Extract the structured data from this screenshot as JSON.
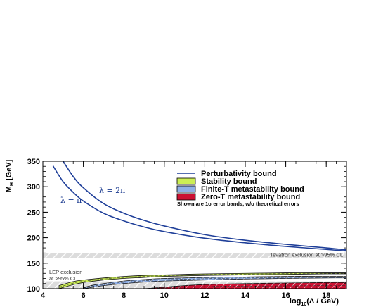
{
  "chart_data": {
    "type": "line",
    "title": "",
    "xlabel": "log10(Λ / GeV)",
    "ylabel": "MH [GeV]",
    "xlim": [
      4,
      19
    ],
    "ylim": [
      100,
      350
    ],
    "x_ticks": [
      4,
      6,
      8,
      10,
      12,
      14,
      16,
      18
    ],
    "y_ticks": [
      100,
      150,
      200,
      250,
      300,
      350
    ],
    "x_tick_labels": [
      "4",
      "6",
      "8",
      "10",
      "12",
      "14",
      "16",
      "18"
    ],
    "y_tick_labels": [
      "100",
      "150",
      "200",
      "250",
      "300",
      "350"
    ],
    "x_tick_minor": 0.5,
    "y_tick_minor": 10,
    "grid": false,
    "legend_position": "top-right",
    "legend": [
      {
        "key": "pert",
        "label": "Perturbativity bound",
        "color": "#1f3f99",
        "kind": "line"
      },
      {
        "key": "stab",
        "label": "Stability bound",
        "color": "#ccee55",
        "kind": "box"
      },
      {
        "key": "finite",
        "label": "Finite-T metastability bound",
        "color": "#8fb0e8",
        "kind": "box"
      },
      {
        "key": "zero",
        "label": "Zero-T metastability bound",
        "color": "#cc1133",
        "kind": "box"
      }
    ],
    "legend_note": "Shown are 1σ error bands, w/o theoretical errors",
    "series": [
      {
        "name": "Perturbativity bound",
        "curve_label": "λ = π",
        "color": "#1f3f99",
        "x": [
          4.5,
          5.0,
          5.5,
          6.0,
          7.0,
          8.0,
          9.0,
          10.0,
          12.0,
          14.0,
          16.0,
          18.0,
          19.0
        ],
        "y": [
          341,
          310,
          289,
          272,
          248,
          233,
          221,
          212,
          199,
          190,
          183,
          177,
          174
        ]
      },
      {
        "name": "Perturbativity bound",
        "curve_label": "λ = 2π",
        "color": "#1f3f99",
        "x": [
          5.0,
          5.5,
          6.0,
          7.0,
          8.0,
          9.0,
          10.0,
          12.0,
          14.0,
          16.0,
          18.0,
          19.0
        ],
        "y": [
          350,
          320,
          298,
          267,
          248,
          234,
          223,
          206,
          195,
          187,
          180,
          176
        ]
      },
      {
        "name": "Stability bound",
        "color": "#ccee55",
        "band": true,
        "x": [
          4.8,
          5.5,
          6.0,
          7.0,
          8.0,
          9.0,
          10.0,
          12.0,
          14.0,
          16.0,
          18.0,
          19.0
        ],
        "y_low": [
          100,
          108,
          112,
          117,
          120,
          122,
          124,
          126,
          127,
          128,
          129,
          129
        ],
        "y_high": [
          106,
          114,
          117,
          121,
          124,
          126,
          127,
          129,
          130,
          131,
          131,
          131
        ]
      },
      {
        "name": "Finite-T metastability bound",
        "color": "#8fb0e8",
        "band": true,
        "x": [
          6.0,
          6.5,
          7.0,
          8.0,
          9.0,
          10.0,
          12.0,
          14.0,
          16.0,
          18.0,
          19.0
        ],
        "y_low": [
          100,
          103,
          106,
          110,
          113,
          115,
          117,
          119,
          120,
          121,
          121
        ],
        "y_high": [
          102,
          107,
          110,
          115,
          118,
          120,
          122,
          123,
          124,
          124,
          124
        ]
      },
      {
        "name": "Zero-T metastability bound",
        "color": "#cc1133",
        "band": true,
        "x": [
          9.0,
          10.0,
          11.0,
          12.0,
          14.0,
          16.0,
          18.0,
          19.0
        ],
        "y_low": [
          100,
          100,
          100,
          100,
          100,
          100,
          100,
          100
        ],
        "y_high": [
          100,
          103,
          106,
          108,
          110,
          111,
          112,
          112
        ]
      }
    ],
    "exclusion_bands": [
      {
        "label": "Tevatron exclusion at >95% CL",
        "y_range": [
          160,
          170
        ],
        "color": "#d9d9d9"
      },
      {
        "label_lines": [
          "LEP exclusion",
          "at >95% CL"
        ],
        "y_range": [
          100,
          114.4
        ],
        "color": "#d9d9d9"
      }
    ]
  }
}
